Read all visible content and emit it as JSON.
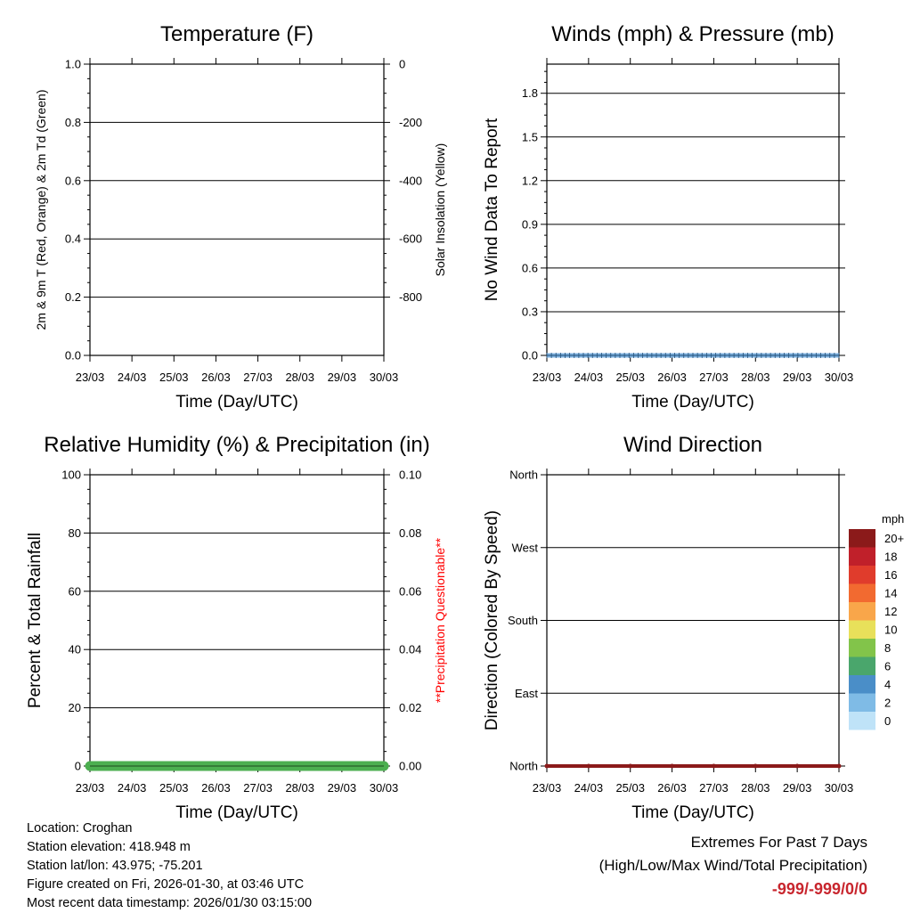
{
  "chart_data": [
    {
      "type": "line",
      "id": "temperature",
      "title": "Temperature (F)",
      "xlabel": "Time (Day/UTC)",
      "ylabel": "2m & 9m T (Red, Orange) & 2m Td (Green)",
      "ylabel_right": "Solar Insolation (Yellow)",
      "x_ticks": [
        "23/03",
        "24/03",
        "25/03",
        "26/03",
        "27/03",
        "28/03",
        "29/03",
        "30/03"
      ],
      "y_ticks": [
        0.0,
        0.2,
        0.4,
        0.6,
        0.8,
        1.0
      ],
      "y_tick_labels": [
        "0.0",
        "0.2",
        "0.4",
        "0.6",
        "0.8",
        "1.0"
      ],
      "ylim": [
        0,
        1
      ],
      "y_right_ticks": [
        0,
        -200,
        -400,
        -600,
        -800
      ],
      "y_right_tick_labels": [
        "0",
        "-200",
        "-400",
        "-600",
        "-800"
      ],
      "y_right_lim": [
        -1000,
        0
      ],
      "grid": true,
      "series": []
    },
    {
      "type": "line",
      "id": "winds",
      "title": "Winds (mph) & Pressure (mb)",
      "xlabel": "Time (Day/UTC)",
      "ylabel": "No Wind Data To Report",
      "x_ticks": [
        "23/03",
        "24/03",
        "25/03",
        "26/03",
        "27/03",
        "28/03",
        "29/03",
        "30/03"
      ],
      "y_ticks": [
        0.0,
        0.3,
        0.6,
        0.9,
        1.2,
        1.5,
        1.8
      ],
      "y_tick_labels": [
        "0.0",
        "0.3",
        "0.6",
        "0.9",
        "1.2",
        "1.5",
        "1.8"
      ],
      "ylim": [
        0,
        2
      ],
      "grid": true,
      "series": [
        {
          "name": "wind",
          "color": "#7fb2e0",
          "values": [
            0,
            0,
            0,
            0,
            0,
            0,
            0,
            0
          ]
        }
      ]
    },
    {
      "type": "area",
      "id": "humidity",
      "title": "Relative Humidity (%) & Precipitation (in)",
      "xlabel": "Time (Day/UTC)",
      "ylabel": "Percent & Total Rainfall",
      "ylabel_right": "**Precipitation Questionable**",
      "x_ticks": [
        "23/03",
        "24/03",
        "25/03",
        "26/03",
        "27/03",
        "28/03",
        "29/03",
        "30/03"
      ],
      "y_ticks": [
        0,
        20,
        40,
        60,
        80,
        100
      ],
      "y_tick_labels": [
        "0",
        "20",
        "40",
        "60",
        "80",
        "100"
      ],
      "ylim": [
        0,
        100
      ],
      "y_right_ticks": [
        0.0,
        0.02,
        0.04,
        0.06,
        0.08,
        0.1
      ],
      "y_right_tick_labels": [
        "0.00",
        "0.02",
        "0.04",
        "0.06",
        "0.08",
        "0.10"
      ],
      "y_right_lim": [
        0,
        0.1
      ],
      "grid": true,
      "series": [
        {
          "name": "precipitation",
          "color": "#4caf50",
          "values": [
            0,
            0,
            0,
            0,
            0,
            0,
            0,
            0
          ]
        }
      ]
    },
    {
      "type": "scatter",
      "id": "wind_direction",
      "title": "Wind Direction",
      "xlabel": "Time (Day/UTC)",
      "ylabel": "Direction (Colored By Speed)",
      "x_ticks": [
        "23/03",
        "24/03",
        "25/03",
        "26/03",
        "27/03",
        "28/03",
        "29/03",
        "30/03"
      ],
      "y_tick_labels": [
        "North",
        "East",
        "South",
        "West",
        "North"
      ],
      "ylim": [
        0,
        360
      ],
      "grid": true,
      "series": [
        {
          "name": "direction",
          "color": "#8b1a1a",
          "values": [
            0,
            0,
            0,
            0,
            0,
            0,
            0,
            0
          ]
        }
      ],
      "colorbar": {
        "unit": "mph",
        "labels": [
          "20+",
          "18",
          "16",
          "14",
          "12",
          "10",
          "8",
          "6",
          "4",
          "2",
          "0"
        ],
        "colors": [
          "#8b1a1a",
          "#c0202a",
          "#e03c2c",
          "#f26a30",
          "#f9a64a",
          "#e8e05a",
          "#82c44a",
          "#4aa66c",
          "#4a8ec8",
          "#7fbbe6",
          "#bfe3f8"
        ]
      }
    }
  ],
  "station": {
    "location": "Location: Croghan",
    "elevation": "Station elevation: 418.948 m",
    "latlon": "Station lat/lon: 43.975; -75.201",
    "created": "Figure created on Fri, 2026-01-30, at 03:46 UTC",
    "timestamp": "Most recent data timestamp: 2026/01/30 03:15:00"
  },
  "extremes": {
    "title": "Extremes For Past 7 Days",
    "subtitle": "(High/Low/Max Wind/Total Precipitation)",
    "values": "-999/-999/0/0",
    "values_color": "#c8262e"
  }
}
